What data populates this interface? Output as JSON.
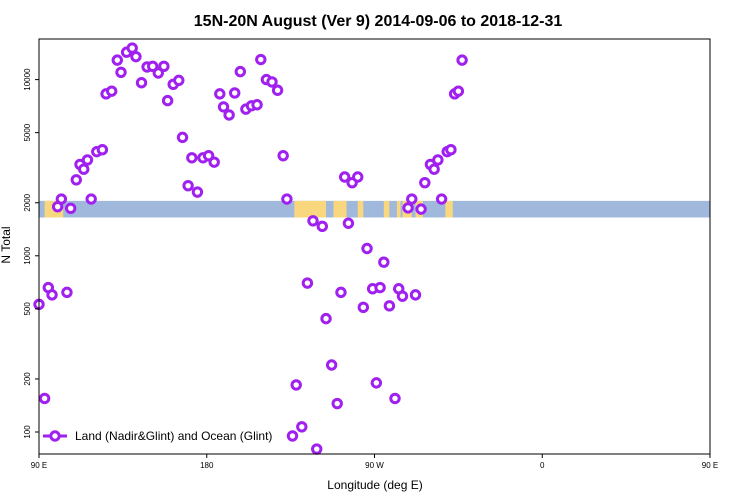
{
  "chart_data": {
    "type": "scatter",
    "title": "15N-20N August (Ver 9)   2014-09-06 to 2018-12-31",
    "xlabel": "Longitude (deg E)",
    "ylabel": "N Total",
    "x_scale": "linear",
    "y_scale": "log",
    "xlim": [
      90,
      450
    ],
    "ylim": [
      75,
      17000
    ],
    "x_ticks": [
      {
        "value": 90,
        "label": "90 E"
      },
      {
        "value": 180,
        "label": "180"
      },
      {
        "value": 270,
        "label": "90 W"
      },
      {
        "value": 360,
        "label": "0"
      },
      {
        "value": 450,
        "label": "90 E"
      },
      {
        "value": 540,
        "label": "180"
      }
    ],
    "y_ticks": [
      {
        "value": 100,
        "label": "100"
      },
      {
        "value": 200,
        "label": "200"
      },
      {
        "value": 500,
        "label": "500"
      },
      {
        "value": 1000,
        "label": "1000"
      },
      {
        "value": 2000,
        "label": "2000"
      },
      {
        "value": 5000,
        "label": "5000"
      },
      {
        "value": 10000,
        "label": "10000"
      }
    ],
    "legend": {
      "position": "bottom-left"
    },
    "colors": {
      "points": "#a020f0",
      "ocean_band": "#9fb8dc",
      "land_band": "#f9d77e"
    },
    "series": [
      {
        "name": "Land (Nadir&Glint) and Ocean (Glint)",
        "points": [
          [
            90,
            530
          ],
          [
            93,
            155
          ],
          [
            95,
            660
          ],
          [
            97,
            600
          ],
          [
            100,
            1900
          ],
          [
            102,
            2100
          ],
          [
            105,
            620
          ],
          [
            107,
            1860
          ],
          [
            110,
            2700
          ],
          [
            112,
            3300
          ],
          [
            114,
            3100
          ],
          [
            116,
            3500
          ],
          [
            118,
            2100
          ],
          [
            121,
            3900
          ],
          [
            124,
            4000
          ],
          [
            126,
            8300
          ],
          [
            129,
            8600
          ],
          [
            132,
            12900
          ],
          [
            134,
            11000
          ],
          [
            137,
            14300
          ],
          [
            140,
            15100
          ],
          [
            142,
            13500
          ],
          [
            145,
            9600
          ],
          [
            148,
            11800
          ],
          [
            151,
            11900
          ],
          [
            154,
            10900
          ],
          [
            157,
            11900
          ],
          [
            159,
            7600
          ],
          [
            162,
            9400
          ],
          [
            165,
            9900
          ],
          [
            167,
            4700
          ],
          [
            170,
            2500
          ],
          [
            172,
            3600
          ],
          [
            175,
            2300
          ],
          [
            178,
            3600
          ],
          [
            181,
            3700
          ],
          [
            184,
            3400
          ],
          [
            187,
            8300
          ],
          [
            189,
            7000
          ],
          [
            192,
            6300
          ],
          [
            195,
            8400
          ],
          [
            198,
            11100
          ],
          [
            201,
            6800
          ],
          [
            204,
            7100
          ],
          [
            207,
            7200
          ],
          [
            209,
            13000
          ],
          [
            212,
            10000
          ],
          [
            215,
            9700
          ],
          [
            218,
            8700
          ],
          [
            221,
            3700
          ],
          [
            223,
            2100
          ],
          [
            226,
            95
          ],
          [
            228,
            185
          ],
          [
            231,
            107
          ],
          [
            234,
            700
          ],
          [
            237,
            1580
          ],
          [
            239,
            80
          ],
          [
            242,
            1470
          ],
          [
            244,
            440
          ],
          [
            247,
            240
          ],
          [
            250,
            145
          ],
          [
            252,
            620
          ],
          [
            254,
            2800
          ],
          [
            256,
            1530
          ],
          [
            258,
            2600
          ],
          [
            261,
            2800
          ],
          [
            264,
            510
          ],
          [
            266,
            1100
          ],
          [
            269,
            650
          ],
          [
            271,
            190
          ],
          [
            273,
            660
          ],
          [
            275,
            920
          ],
          [
            278,
            520
          ],
          [
            281,
            155
          ],
          [
            283,
            650
          ],
          [
            285,
            590
          ],
          [
            288,
            1870
          ],
          [
            290,
            2100
          ],
          [
            292,
            600
          ],
          [
            295,
            1840
          ],
          [
            297,
            2600
          ],
          [
            300,
            3300
          ],
          [
            302,
            3100
          ],
          [
            304,
            3500
          ],
          [
            306,
            2100
          ],
          [
            309,
            3900
          ],
          [
            311,
            4000
          ],
          [
            313,
            8300
          ],
          [
            315,
            8600
          ],
          [
            317,
            12900
          ]
        ]
      }
    ],
    "ocean_band": {
      "y_range": [
        1650,
        2050
      ]
    },
    "land_regions_on_band": [
      {
        "x_range": [
          93,
          103
        ]
      },
      {
        "x_range": [
          227,
          244
        ]
      },
      {
        "x_range": [
          248,
          255
        ]
      },
      {
        "x_range": [
          261,
          264
        ]
      },
      {
        "x_range": [
          275,
          278
        ]
      },
      {
        "x_range": [
          282,
          284
        ]
      },
      {
        "x_range": [
          285,
          290
        ]
      },
      {
        "x_range": [
          292,
          296
        ]
      },
      {
        "x_range": [
          308,
          312
        ]
      }
    ]
  }
}
